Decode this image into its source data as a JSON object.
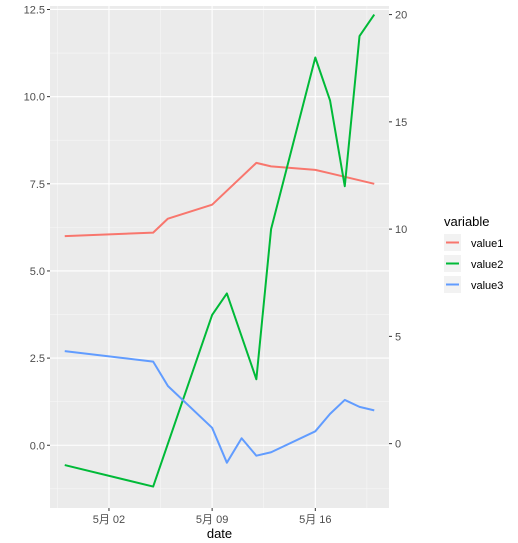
{
  "chart_data": {
    "type": "line",
    "xlabel": "date",
    "x": [
      "04-29",
      "05-05",
      "05-06",
      "05-09",
      "05-10",
      "05-11",
      "05-12",
      "05-13",
      "05-14",
      "05-16",
      "05-17",
      "05-18",
      "05-19",
      "05-20"
    ],
    "x_tick_labels": [
      {
        "date": "05-02",
        "label": "5月 02"
      },
      {
        "date": "05-09",
        "label": "5月 09"
      },
      {
        "date": "05-16",
        "label": "5月 16"
      }
    ],
    "xlim": [
      "04-28",
      "05-21"
    ],
    "y_left": {
      "ylim": [
        -1.8,
        12.6
      ],
      "ticks": [
        "0.0",
        "2.5",
        "5.0",
        "7.5",
        "10.0",
        "12.5"
      ]
    },
    "y_right": {
      "ylim": [
        -3,
        20.4
      ],
      "ticks": [
        "0",
        "5",
        "10",
        "15",
        "20"
      ]
    },
    "series": [
      {
        "name": "value1",
        "axis": "left",
        "color": "#F8766D",
        "x": [
          "04-29",
          "05-05",
          "05-06",
          "05-09",
          "05-12",
          "05-13",
          "05-16",
          "05-17",
          "05-20"
        ],
        "values": [
          6.0,
          6.1,
          6.5,
          6.9,
          8.1,
          8.0,
          7.9,
          7.8,
          7.5
        ]
      },
      {
        "name": "value2",
        "axis": "right",
        "color": "#00BA38",
        "x": [
          "04-29",
          "05-05",
          "05-09",
          "05-10",
          "05-12",
          "05-13",
          "05-16",
          "05-17",
          "05-18",
          "05-19",
          "05-20"
        ],
        "values": [
          -1.0,
          -2.0,
          6.0,
          7.0,
          3.0,
          10.0,
          18.0,
          16.0,
          12.0,
          19.0,
          20.0
        ]
      },
      {
        "name": "value3",
        "axis": "left",
        "color": "#619CFF",
        "x": [
          "04-29",
          "05-05",
          "05-06",
          "05-09",
          "05-10",
          "05-11",
          "05-12",
          "05-13",
          "05-16",
          "05-17",
          "05-18",
          "05-19",
          "05-20"
        ],
        "values": [
          2.7,
          2.4,
          1.7,
          0.5,
          -0.5,
          0.2,
          -0.3,
          -0.2,
          0.4,
          0.9,
          1.3,
          1.1,
          1.0
        ]
      }
    ],
    "legend": {
      "title": "variable",
      "placement": "right"
    },
    "grid": true
  }
}
